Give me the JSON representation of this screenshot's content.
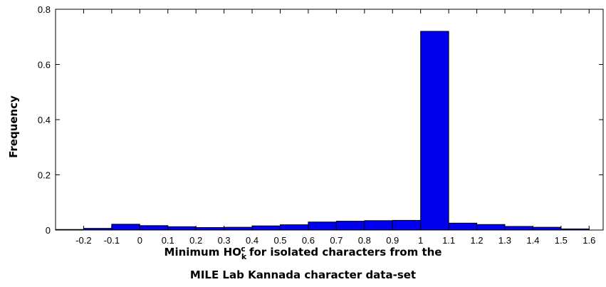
{
  "chart_data": {
    "type": "bar",
    "title": "",
    "ylabel": "Frequency",
    "xlabel_line1": {
      "prefix": "Minimum HO",
      "subscript": "k",
      "superscript": "c",
      "suffix": " for isolated characters from the"
    },
    "xlabel_line2": "MILE Lab Kannada character data-set",
    "xlim": [
      -0.3,
      1.65
    ],
    "ylim": [
      0,
      0.8
    ],
    "xticks": [
      "-0.2",
      "-0.1",
      "0",
      "0.1",
      "0.2",
      "0.3",
      "0.4",
      "0.5",
      "0.6",
      "0.7",
      "0.8",
      "0.9",
      "1",
      "1.1",
      "1.2",
      "1.3",
      "1.4",
      "1.5",
      "1.6"
    ],
    "xtick_values": [
      -0.2,
      -0.1,
      0,
      0.1,
      0.2,
      0.3,
      0.4,
      0.5,
      0.6,
      0.7,
      0.8,
      0.9,
      1.0,
      1.1,
      1.2,
      1.3,
      1.4,
      1.5,
      1.6
    ],
    "yticks": [
      "0",
      "0.2",
      "0.4",
      "0.6",
      "0.8"
    ],
    "ytick_values": [
      0,
      0.2,
      0.4,
      0.6,
      0.8
    ],
    "bins": [
      {
        "x0": -0.3,
        "x1": -0.2,
        "value": 0.002
      },
      {
        "x0": -0.2,
        "x1": -0.1,
        "value": 0.006
      },
      {
        "x0": -0.1,
        "x1": 0.0,
        "value": 0.021
      },
      {
        "x0": 0.0,
        "x1": 0.1,
        "value": 0.016
      },
      {
        "x0": 0.1,
        "x1": 0.2,
        "value": 0.012
      },
      {
        "x0": 0.2,
        "x1": 0.3,
        "value": 0.009
      },
      {
        "x0": 0.3,
        "x1": 0.4,
        "value": 0.01
      },
      {
        "x0": 0.4,
        "x1": 0.5,
        "value": 0.015
      },
      {
        "x0": 0.5,
        "x1": 0.6,
        "value": 0.019
      },
      {
        "x0": 0.6,
        "x1": 0.7,
        "value": 0.029
      },
      {
        "x0": 0.7,
        "x1": 0.8,
        "value": 0.032
      },
      {
        "x0": 0.8,
        "x1": 0.9,
        "value": 0.034
      },
      {
        "x0": 0.9,
        "x1": 1.0,
        "value": 0.035
      },
      {
        "x0": 1.0,
        "x1": 1.1,
        "value": 0.72
      },
      {
        "x0": 1.1,
        "x1": 1.2,
        "value": 0.025
      },
      {
        "x0": 1.2,
        "x1": 1.3,
        "value": 0.02
      },
      {
        "x0": 1.3,
        "x1": 1.4,
        "value": 0.013
      },
      {
        "x0": 1.4,
        "x1": 1.5,
        "value": 0.01
      },
      {
        "x0": 1.5,
        "x1": 1.6,
        "value": 0.004
      }
    ],
    "bar_color": "#0000ee",
    "grid": false,
    "legend": "none"
  }
}
